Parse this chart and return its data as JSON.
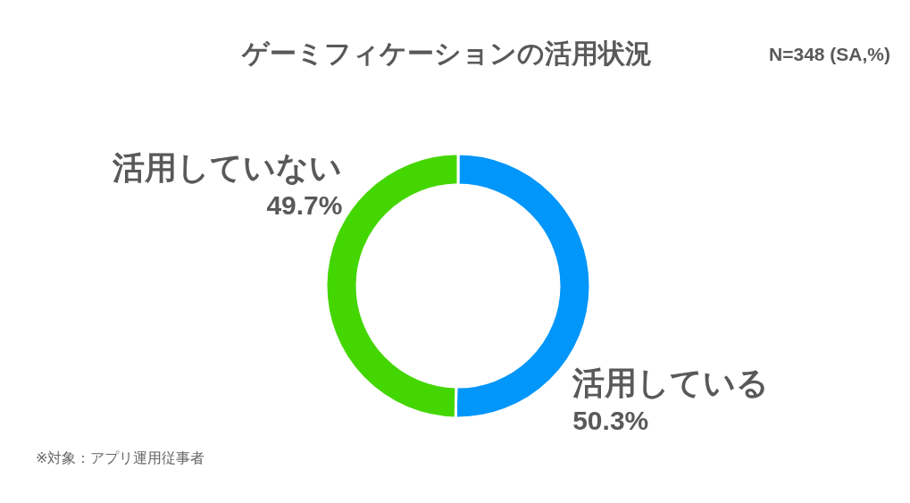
{
  "chart_data": {
    "type": "donut",
    "title": "ゲーミフィケーションの活用状況",
    "subtitle": "N=348 (SA,%)",
    "categories": [
      "活用している",
      "活用していない"
    ],
    "values": [
      50.3,
      49.7
    ],
    "colors": [
      "#0096fa",
      "#44d600"
    ],
    "value_labels": [
      "50.3%",
      "49.7%"
    ],
    "annotations": [
      "※対象：アプリ運用従事者"
    ]
  }
}
